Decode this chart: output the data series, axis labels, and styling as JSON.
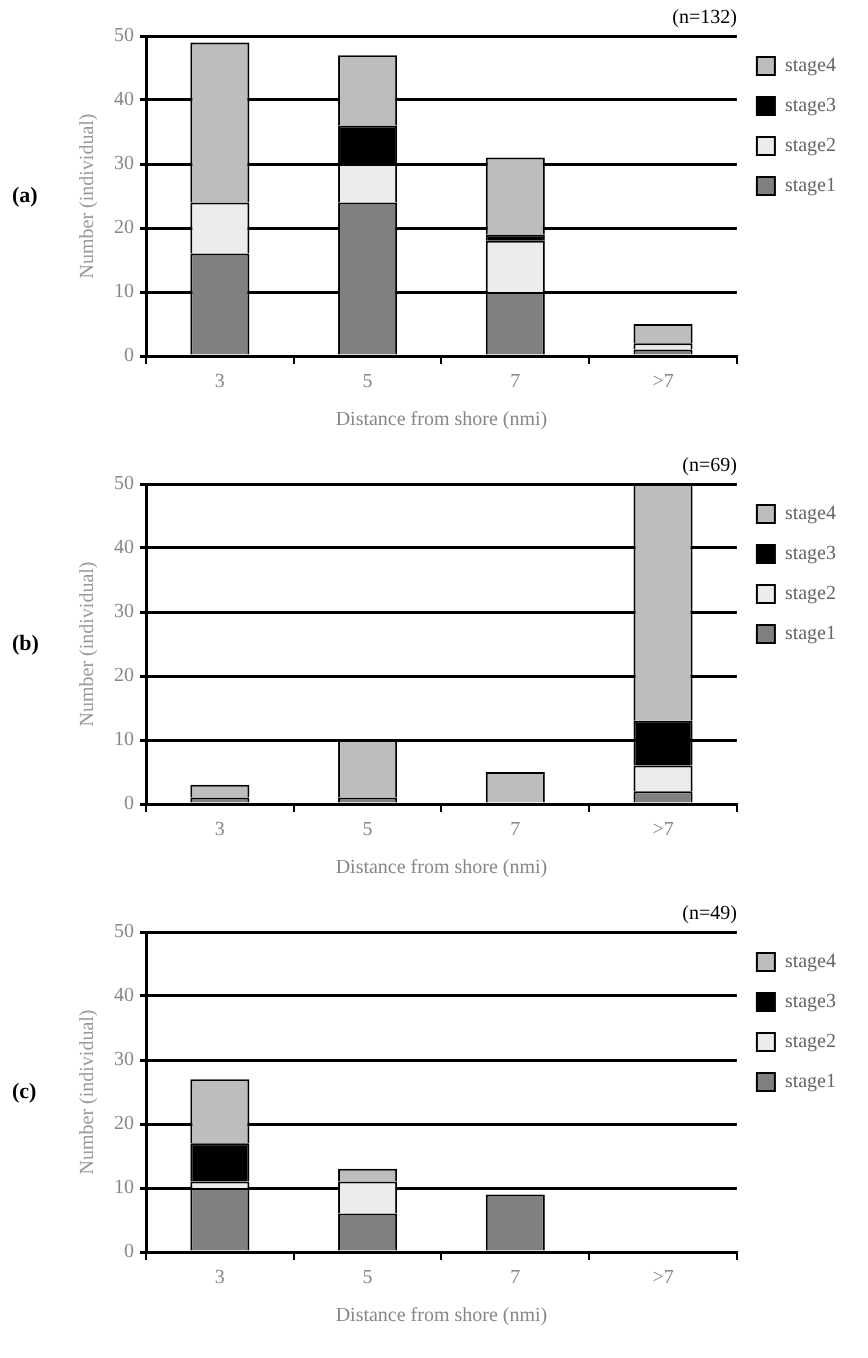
{
  "chart_data": [
    {
      "type": "bar",
      "stacked": true,
      "categories": [
        "3",
        "5",
        "7",
        ">7"
      ],
      "series": [
        {
          "name": "stage1",
          "color": "#808080",
          "values": [
            16,
            24,
            10,
            1
          ]
        },
        {
          "name": "stage2",
          "color": "#ececec",
          "values": [
            8,
            6,
            8,
            1
          ]
        },
        {
          "name": "stage3",
          "color": "#000000",
          "values": [
            0,
            6,
            1,
            0
          ]
        },
        {
          "name": "stage4",
          "color": "#bdbdbd",
          "values": [
            25,
            11,
            12,
            3
          ]
        }
      ],
      "ylim": [
        0,
        50
      ],
      "yticks": [
        0,
        10,
        20,
        30,
        40,
        50
      ],
      "grid": "y",
      "legend": "right",
      "xlabel": "Distance from shore (nmi)",
      "ylabel": "Number (individual)",
      "annotations": [
        "(a)",
        "(n=132)"
      ]
    },
    {
      "type": "bar",
      "stacked": true,
      "categories": [
        "3",
        "5",
        "7",
        ">7"
      ],
      "series": [
        {
          "name": "stage1",
          "color": "#808080",
          "values": [
            1,
            1,
            0,
            2
          ]
        },
        {
          "name": "stage2",
          "color": "#ececec",
          "values": [
            0,
            0,
            0,
            4
          ]
        },
        {
          "name": "stage3",
          "color": "#000000",
          "values": [
            0,
            0,
            0,
            7
          ]
        },
        {
          "name": "stage4",
          "color": "#bdbdbd",
          "values": [
            2,
            9,
            5,
            37
          ]
        }
      ],
      "ylim": [
        0,
        50
      ],
      "yticks": [
        0,
        10,
        20,
        30,
        40,
        50
      ],
      "grid": "y",
      "legend": "right",
      "xlabel": "Distance from shore (nmi)",
      "ylabel": "Number (individual)",
      "annotations": [
        "(b)",
        "(n=69)"
      ]
    },
    {
      "type": "bar",
      "stacked": true,
      "categories": [
        "3",
        "5",
        "7",
        ">7"
      ],
      "series": [
        {
          "name": "stage1",
          "color": "#808080",
          "values": [
            10,
            6,
            9,
            0
          ]
        },
        {
          "name": "stage2",
          "color": "#ececec",
          "values": [
            1,
            5,
            0,
            0
          ]
        },
        {
          "name": "stage3",
          "color": "#000000",
          "values": [
            6,
            0,
            0,
            0
          ]
        },
        {
          "name": "stage4",
          "color": "#bdbdbd",
          "values": [
            10,
            2,
            0,
            0
          ]
        }
      ],
      "ylim": [
        0,
        50
      ],
      "yticks": [
        0,
        10,
        20,
        30,
        40,
        50
      ],
      "grid": "y",
      "legend": "right",
      "xlabel": "Distance from shore (nmi)",
      "ylabel": "Number (individual)",
      "annotations": [
        "(c)",
        "(n=49)"
      ]
    }
  ]
}
